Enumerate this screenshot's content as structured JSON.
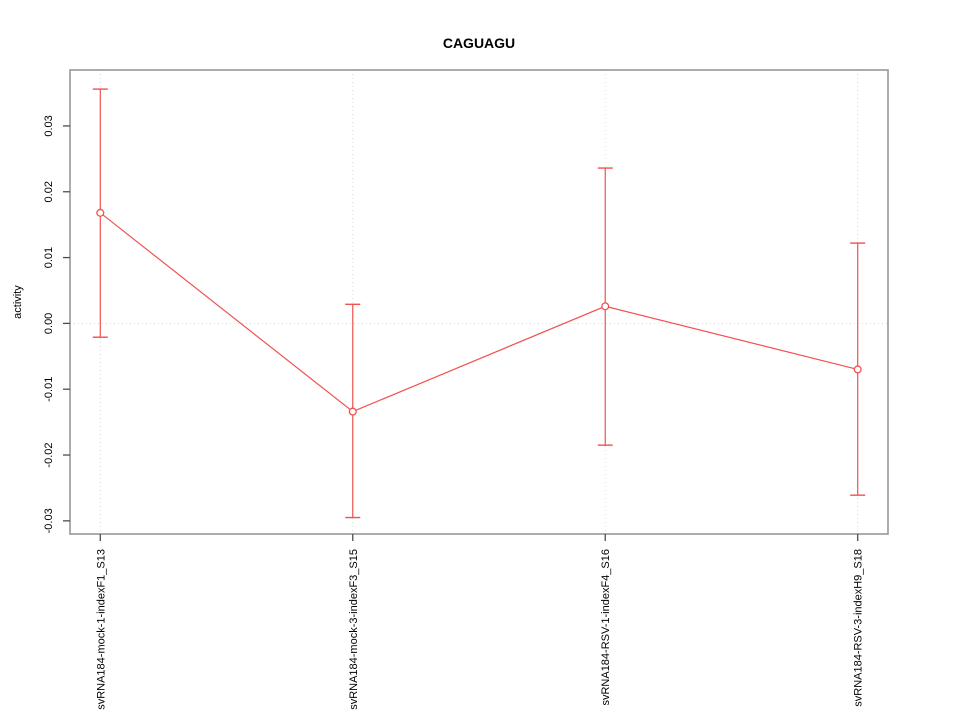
{
  "chart_data": {
    "type": "line",
    "title": "CAGUAGU",
    "xlabel": "",
    "ylabel": "activity",
    "categories": [
      "svRNA184-mock-1-indexF1_S13",
      "svRNA184-mock-3-indexF3_S15",
      "svRNA184-RSV-1-indexF4_S16",
      "svRNA184-RSV-3-indexH9_S18"
    ],
    "series": [
      {
        "name": "activity",
        "values": [
          0.0168,
          -0.0134,
          0.0026,
          -0.007
        ],
        "error_low": [
          -0.0021,
          -0.0295,
          -0.0185,
          -0.0261
        ],
        "error_high": [
          0.0356,
          0.0029,
          0.0236,
          0.0122
        ]
      }
    ],
    "yticks": [
      0.03,
      0.02,
      0.01,
      0.0,
      -0.01,
      -0.02,
      -0.03
    ],
    "ytick_labels": [
      "0.03",
      "0.02",
      "0.01",
      "0.00",
      "-0.01",
      "-0.02",
      "-0.03"
    ],
    "ylim": [
      -0.032,
      0.0385
    ],
    "xlim": [
      0.88,
      4.12
    ],
    "grid": {
      "vertical_at_points": true,
      "horizontal_at_zero": true,
      "style": "dotted"
    },
    "legend": "none",
    "marker": "open-circle",
    "colors": {
      "series": "#f0524f",
      "grid": "#d9d9d9",
      "box": "#979797",
      "tick": "#4d4d4d",
      "text": "#000000",
      "background": "#ffffff"
    }
  }
}
